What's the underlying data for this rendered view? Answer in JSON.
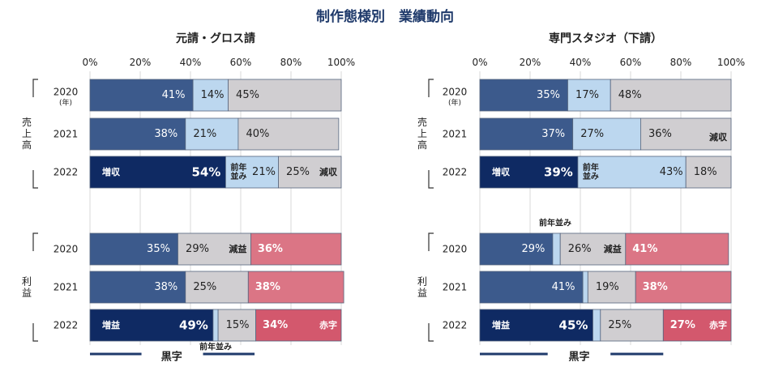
{
  "title": "制作態様別　業績動向",
  "chart_data": [
    {
      "type": "bar",
      "stacked": true,
      "orientation": "horizontal",
      "title": "元請・グロス請",
      "x_ticks": [
        "0%",
        "20%",
        "40%",
        "60%",
        "80%",
        "100%"
      ],
      "xlim": [
        0,
        100
      ],
      "grid": true,
      "groups": [
        {
          "label": "売上高",
          "rows": [
            {
              "category": "2020",
              "sub": "(年)",
              "values": [
                41,
                14,
                45
              ],
              "labels": [
                "41%",
                "14%",
                "45%"
              ]
            },
            {
              "category": "2021",
              "values": [
                38,
                21,
                40
              ],
              "labels": [
                "38%",
                "21%",
                "40%"
              ]
            },
            {
              "category": "2022",
              "values": [
                54,
                21,
                25
              ],
              "labels": [
                "54%",
                "21%",
                "25%"
              ],
              "highlight": true,
              "tags": [
                "増収",
                "前年\n並み",
                "減収"
              ]
            }
          ]
        },
        {
          "label": "利益",
          "rows": [
            {
              "category": "2020",
              "values": [
                35,
                29,
                36
              ],
              "labels": [
                "35%",
                "29%",
                "36%"
              ],
              "tags": [
                "",
                "減益",
                ""
              ]
            },
            {
              "category": "2021",
              "values": [
                38,
                25,
                38
              ],
              "labels": [
                "38%",
                "25%",
                "38%"
              ]
            },
            {
              "category": "2022",
              "values": [
                49,
                2,
                15,
                34
              ],
              "labels": [
                "49%",
                "",
                "15%",
                "34%"
              ],
              "highlight": true,
              "tags": [
                "増益",
                "",
                "",
                "赤字"
              ],
              "callout": "前年並み"
            }
          ]
        }
      ],
      "legend": "黒字"
    },
    {
      "type": "bar",
      "stacked": true,
      "orientation": "horizontal",
      "title": "専門スタジオ（下請）",
      "x_ticks": [
        "0%",
        "20%",
        "40%",
        "60%",
        "80%",
        "100%"
      ],
      "xlim": [
        0,
        100
      ],
      "grid": true,
      "groups": [
        {
          "label": "売上高",
          "rows": [
            {
              "category": "2020",
              "sub": "(年)",
              "values": [
                35,
                17,
                48
              ],
              "labels": [
                "35%",
                "17%",
                "48%"
              ]
            },
            {
              "category": "2021",
              "values": [
                37,
                27,
                36
              ],
              "labels": [
                "37%",
                "27%",
                "36%"
              ],
              "tags": [
                "",
                "",
                "減収"
              ]
            },
            {
              "category": "2022",
              "values": [
                39,
                43,
                18
              ],
              "labels": [
                "39%",
                "43%",
                "18%"
              ],
              "highlight": true,
              "tags": [
                "増収",
                "前年\n並み",
                ""
              ]
            }
          ]
        },
        {
          "label": "利益",
          "rows": [
            {
              "category": "2020",
              "values": [
                29,
                3,
                26,
                41
              ],
              "labels": [
                "29%",
                "",
                "26%",
                "41%"
              ],
              "tags": [
                "",
                "",
                "減益",
                ""
              ],
              "callout": "前年並み"
            },
            {
              "category": "2021",
              "values": [
                41,
                2,
                19,
                38
              ],
              "labels": [
                "41%",
                "",
                "19%",
                "38%"
              ]
            },
            {
              "category": "2022",
              "values": [
                45,
                3,
                25,
                27
              ],
              "labels": [
                "45%",
                "",
                "25%",
                "27%"
              ],
              "highlight": true,
              "tags": [
                "増益",
                "",
                "",
                "赤字"
              ]
            }
          ]
        }
      ],
      "legend": "黒字"
    }
  ],
  "colors": {
    "increase": "#3c5a8c",
    "increase_highlight": "#0f2a63",
    "flat": "#bcd7ef",
    "decrease": "#d0ced1",
    "loss": "#db7585",
    "loss_highlight": "#d3586d",
    "grid": "#d9d9d9",
    "title": "#1f3a6b",
    "text": "#222222"
  }
}
